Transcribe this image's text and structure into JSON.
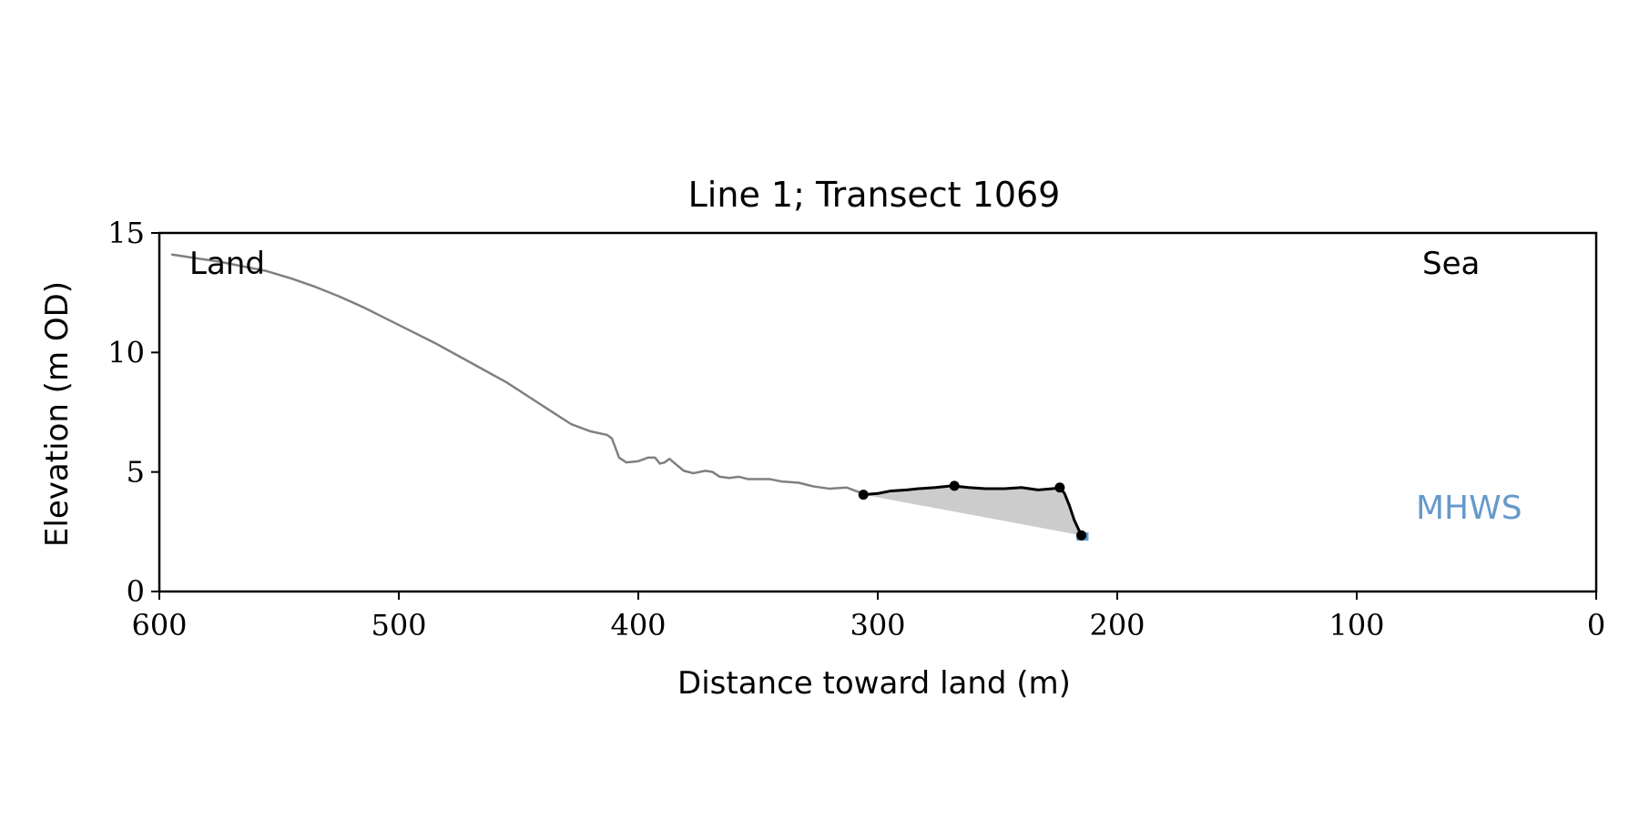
{
  "chart_data": {
    "type": "line",
    "title": "Line 1; Transect 1069",
    "xlabel": "Distance toward land (m)",
    "ylabel": "Elevation (m OD)",
    "xlim": [
      600,
      0
    ],
    "ylim": [
      0,
      15
    ],
    "x_reversed": true,
    "x_ticks": [
      600,
      500,
      400,
      300,
      200,
      100,
      0
    ],
    "y_ticks": [
      0,
      5,
      10,
      15
    ],
    "grid": false,
    "legend": "none",
    "colors": {
      "profile": "#808080",
      "dune": "#000000",
      "fill": "#cccccc",
      "mhws": "#6699cc",
      "axes": "#000000"
    },
    "annotations": {
      "land": "Land",
      "sea": "Sea",
      "mhws": "MHWS"
    },
    "series": [
      {
        "role": "profile",
        "points": [
          [
            595,
            14.1
          ],
          [
            585,
            13.95
          ],
          [
            575,
            13.8
          ],
          [
            565,
            13.6
          ],
          [
            555,
            13.4
          ],
          [
            545,
            13.1
          ],
          [
            535,
            12.75
          ],
          [
            525,
            12.35
          ],
          [
            515,
            11.9
          ],
          [
            505,
            11.4
          ],
          [
            495,
            10.9
          ],
          [
            485,
            10.4
          ],
          [
            475,
            9.85
          ],
          [
            465,
            9.3
          ],
          [
            455,
            8.75
          ],
          [
            445,
            8.1
          ],
          [
            435,
            7.45
          ],
          [
            428,
            7.0
          ],
          [
            420,
            6.7
          ],
          [
            413,
            6.55
          ],
          [
            411,
            6.4
          ],
          [
            408,
            5.6
          ],
          [
            405,
            5.4
          ],
          [
            400,
            5.45
          ],
          [
            396,
            5.6
          ],
          [
            393,
            5.6
          ],
          [
            391,
            5.35
          ],
          [
            389,
            5.4
          ],
          [
            387,
            5.55
          ],
          [
            384,
            5.3
          ],
          [
            381,
            5.05
          ],
          [
            377,
            4.95
          ],
          [
            372,
            5.05
          ],
          [
            369,
            5.0
          ],
          [
            366,
            4.8
          ],
          [
            362,
            4.75
          ],
          [
            358,
            4.8
          ],
          [
            354,
            4.7
          ],
          [
            345,
            4.7
          ],
          [
            340,
            4.6
          ],
          [
            333,
            4.55
          ],
          [
            327,
            4.4
          ],
          [
            320,
            4.3
          ],
          [
            313,
            4.35
          ],
          [
            309,
            4.2
          ],
          [
            306,
            4.1
          ]
        ]
      },
      {
        "role": "dune",
        "points": [
          [
            306,
            4.05
          ],
          [
            300,
            4.1
          ],
          [
            295,
            4.2
          ],
          [
            288,
            4.25
          ],
          [
            283,
            4.3
          ],
          [
            276,
            4.35
          ],
          [
            269,
            4.42
          ],
          [
            262,
            4.35
          ],
          [
            255,
            4.3
          ],
          [
            247,
            4.3
          ],
          [
            240,
            4.35
          ],
          [
            233,
            4.25
          ],
          [
            227,
            4.3
          ],
          [
            224,
            4.35
          ],
          [
            222,
            4.1
          ],
          [
            220,
            3.6
          ],
          [
            218,
            3.0
          ],
          [
            215,
            2.35
          ]
        ]
      }
    ],
    "markers": [
      {
        "x": 306,
        "y": 4.05
      },
      {
        "x": 268,
        "y": 4.42
      },
      {
        "x": 224,
        "y": 4.35
      },
      {
        "x": 215,
        "y": 2.35
      }
    ],
    "fill_region": {
      "upper": "dune",
      "baseline": [
        [
          306,
          4.05
        ],
        [
          215,
          2.35
        ]
      ]
    },
    "mhws": {
      "x_from": 217,
      "x_to": 212,
      "y": 2.3
    }
  }
}
